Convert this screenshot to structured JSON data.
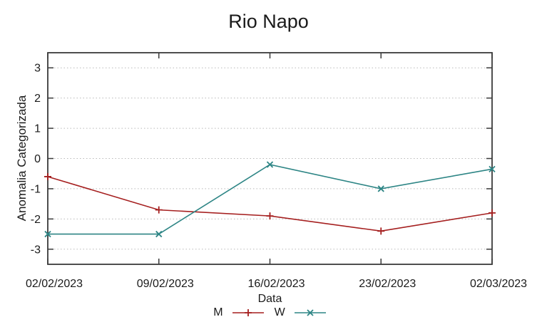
{
  "chart_data": {
    "type": "line",
    "title": "Rio Napo",
    "xlabel": "Data",
    "ylabel": "Anomalia Categorizada",
    "categories": [
      "02/02/2023",
      "09/02/2023",
      "16/02/2023",
      "23/02/2023",
      "02/03/2023"
    ],
    "series": [
      {
        "name": "M",
        "color": "#a51f1f",
        "marker": "plus",
        "values": [
          -0.6,
          -1.7,
          -1.9,
          -2.4,
          -1.8
        ]
      },
      {
        "name": "W",
        "color": "#2d8585",
        "marker": "cross",
        "values": [
          -2.5,
          -2.5,
          -0.2,
          -1.0,
          -0.35
        ]
      }
    ],
    "ylim": [
      -3.5,
      3.5
    ],
    "yticks": [
      -3,
      -2,
      -1,
      0,
      1,
      2,
      3
    ],
    "grid": "horizontal-dotted",
    "legend_position": "bottom-center",
    "axis_color": "#3a3a3a",
    "grid_color": "#b9b9b9"
  }
}
